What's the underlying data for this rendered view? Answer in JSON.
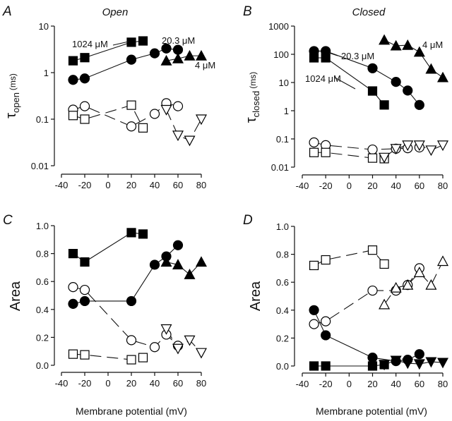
{
  "chart_data": [
    {
      "type": "scatter",
      "panel_letter": "A",
      "title": "Open",
      "ylabel": {
        "symbol": "τ",
        "sub": "open",
        "unit": "(ms)"
      },
      "xlabel": "",
      "yscale": "log",
      "ylim": [
        0.01,
        10
      ],
      "xlim": [
        -40,
        80
      ],
      "yticks": [
        {
          "v": 10,
          "label": "10"
        },
        {
          "v": 1,
          "label": "1"
        },
        {
          "v": 0.1,
          "label": "0.1"
        },
        {
          "v": 0.01,
          "label": "0.01"
        }
      ],
      "xticks": [
        {
          "v": -40,
          "label": "-40"
        },
        {
          "v": -20,
          "label": "-20"
        },
        {
          "v": 0,
          "label": "0"
        },
        {
          "v": 20,
          "label": "20"
        },
        {
          "v": 40,
          "label": "40"
        },
        {
          "v": 60,
          "label": "60"
        },
        {
          "v": 80,
          "label": "80"
        }
      ],
      "annotations": [
        "1024 μM",
        "20.3 μM",
        "4 μM"
      ],
      "series": [
        {
          "name": "1024 μM fast",
          "marker": "square",
          "filled": true,
          "points": [
            [
              -30,
              1.8
            ],
            [
              -20,
              2.1
            ],
            [
              20,
              4.5
            ],
            [
              30,
              4.8
            ]
          ]
        },
        {
          "name": "20.3 μM fast",
          "marker": "circle",
          "filled": true,
          "points": [
            [
              -30,
              0.7
            ],
            [
              -20,
              0.75
            ],
            [
              20,
              1.9
            ],
            [
              40,
              2.6
            ],
            [
              50,
              3.3
            ],
            [
              60,
              3.1
            ]
          ]
        },
        {
          "name": "4 μM fast",
          "marker": "triangle-up",
          "filled": true,
          "points": [
            [
              50,
              1.8
            ],
            [
              60,
              2.0
            ],
            [
              70,
              2.3
            ],
            [
              80,
              2.3
            ]
          ]
        },
        {
          "name": "20.3 μM slow",
          "marker": "circle",
          "filled": false,
          "points": [
            [
              -30,
              0.16
            ],
            [
              -20,
              0.19
            ],
            [
              20,
              0.07
            ],
            [
              40,
              0.13
            ],
            [
              50,
              0.22
            ],
            [
              60,
              0.19
            ]
          ]
        },
        {
          "name": "1024 μM slow",
          "marker": "square",
          "filled": false,
          "points": [
            [
              -30,
              0.12
            ],
            [
              -20,
              0.1
            ],
            [
              20,
              0.2
            ],
            [
              30,
              0.065
            ]
          ]
        },
        {
          "name": "4 μM slow",
          "marker": "triangle-down",
          "filled": false,
          "points": [
            [
              50,
              0.16
            ],
            [
              60,
              0.045
            ],
            [
              70,
              0.035
            ],
            [
              80,
              0.1
            ]
          ]
        }
      ]
    },
    {
      "type": "scatter",
      "panel_letter": "B",
      "title": "Closed",
      "ylabel": {
        "symbol": "τ",
        "sub": "closed",
        "unit": "(ms)"
      },
      "xlabel": "",
      "yscale": "log",
      "ylim": [
        0.01,
        1000
      ],
      "xlim": [
        -40,
        80
      ],
      "yticks": [
        {
          "v": 1000,
          "label": "1000"
        },
        {
          "v": 100,
          "label": "100"
        },
        {
          "v": 10,
          "label": "10"
        },
        {
          "v": 1,
          "label": "1"
        },
        {
          "v": 0.1,
          "label": "0.1"
        },
        {
          "v": 0.01,
          "label": "0.01"
        }
      ],
      "xticks": [
        {
          "v": -40,
          "label": "-40"
        },
        {
          "v": -20,
          "label": "-20"
        },
        {
          "v": 0,
          "label": "0"
        },
        {
          "v": 20,
          "label": "20"
        },
        {
          "v": 40,
          "label": "40"
        },
        {
          "v": 60,
          "label": "60"
        },
        {
          "v": 80,
          "label": "80"
        }
      ],
      "annotations": [
        "4 μM",
        "20.3 μM",
        "1024 μM"
      ],
      "series": [
        {
          "name": "4 μM slow",
          "marker": "triangle-up",
          "filled": true,
          "points": [
            [
              30,
              320
            ],
            [
              40,
              200
            ],
            [
              50,
              210
            ],
            [
              60,
              120
            ],
            [
              70,
              30
            ],
            [
              80,
              15
            ]
          ]
        },
        {
          "name": "20.3 μM slow",
          "marker": "circle",
          "filled": true,
          "points": [
            [
              -30,
              130
            ],
            [
              -20,
              130
            ],
            [
              20,
              32
            ],
            [
              40,
              10.5
            ],
            [
              50,
              5.2
            ],
            [
              60,
              1.6
            ]
          ]
        },
        {
          "name": "1024 μM slow",
          "marker": "square",
          "filled": true,
          "points": [
            [
              -30,
              75
            ],
            [
              -20,
              75
            ],
            [
              20,
              5
            ],
            [
              30,
              1.6
            ]
          ]
        },
        {
          "name": "20.3 μM fast",
          "marker": "circle",
          "filled": false,
          "points": [
            [
              -30,
              0.075
            ],
            [
              -20,
              0.06
            ],
            [
              20,
              0.042
            ],
            [
              40,
              0.045
            ],
            [
              50,
              0.047
            ],
            [
              60,
              0.05
            ]
          ]
        },
        {
          "name": "1024 μM fast",
          "marker": "square",
          "filled": false,
          "points": [
            [
              -30,
              0.033
            ],
            [
              -20,
              0.033
            ],
            [
              20,
              0.021
            ],
            [
              30,
              0.02
            ]
          ]
        },
        {
          "name": "4 μM fast",
          "marker": "triangle-down",
          "filled": false,
          "points": [
            [
              30,
              0.022
            ],
            [
              40,
              0.045
            ],
            [
              50,
              0.06
            ],
            [
              60,
              0.06
            ],
            [
              70,
              0.04
            ],
            [
              80,
              0.06
            ]
          ]
        }
      ]
    },
    {
      "type": "scatter",
      "panel_letter": "C",
      "title": "",
      "ylabel": {
        "symbol": "Area",
        "sub": "",
        "unit": ""
      },
      "xlabel": "Membrane potential (mV)",
      "yscale": "linear",
      "ylim": [
        0,
        1
      ],
      "xlim": [
        -40,
        80
      ],
      "yticks": [
        {
          "v": 1,
          "label": "1.0"
        },
        {
          "v": 0.8,
          "label": "0.8"
        },
        {
          "v": 0.6,
          "label": "0.6"
        },
        {
          "v": 0.4,
          "label": "0.4"
        },
        {
          "v": 0.2,
          "label": "0.2"
        },
        {
          "v": 0,
          "label": "0.0"
        }
      ],
      "xticks": [
        {
          "v": -40,
          "label": "-40"
        },
        {
          "v": -20,
          "label": "-20"
        },
        {
          "v": 0,
          "label": "0"
        },
        {
          "v": 20,
          "label": "20"
        },
        {
          "v": 40,
          "label": "40"
        },
        {
          "v": 60,
          "label": "60"
        },
        {
          "v": 80,
          "label": "80"
        }
      ],
      "annotations": [],
      "series": [
        {
          "name": "1024 μM",
          "marker": "square",
          "filled": true,
          "points": [
            [
              -30,
              0.8
            ],
            [
              -20,
              0.74
            ],
            [
              20,
              0.95
            ],
            [
              30,
              0.94
            ]
          ]
        },
        {
          "name": "20.3 μM",
          "marker": "circle",
          "filled": true,
          "points": [
            [
              -30,
              0.44
            ],
            [
              -20,
              0.46
            ],
            [
              20,
              0.46
            ],
            [
              40,
              0.72
            ],
            [
              50,
              0.78
            ],
            [
              60,
              0.86
            ]
          ]
        },
        {
          "name": "4 μM",
          "marker": "triangle-up",
          "filled": true,
          "points": [
            [
              50,
              0.74
            ],
            [
              60,
              0.72
            ],
            [
              70,
              0.65
            ],
            [
              80,
              0.74
            ]
          ]
        },
        {
          "name": "20.3 μM open",
          "marker": "circle",
          "filled": false,
          "points": [
            [
              -30,
              0.56
            ],
            [
              -20,
              0.54
            ],
            [
              20,
              0.18
            ],
            [
              40,
              0.13
            ],
            [
              50,
              0.22
            ],
            [
              60,
              0.14
            ]
          ]
        },
        {
          "name": "1024 μM open",
          "marker": "square",
          "filled": false,
          "points": [
            [
              -30,
              0.08
            ],
            [
              -20,
              0.075
            ],
            [
              20,
              0.04
            ],
            [
              30,
              0.055
            ]
          ]
        },
        {
          "name": "4 μM open",
          "marker": "triangle-down",
          "filled": false,
          "points": [
            [
              50,
              0.26
            ],
            [
              60,
              0.12
            ],
            [
              70,
              0.18
            ],
            [
              80,
              0.09
            ]
          ]
        }
      ]
    },
    {
      "type": "scatter",
      "panel_letter": "D",
      "title": "",
      "ylabel": {
        "symbol": "Area",
        "sub": "",
        "unit": ""
      },
      "xlabel": "Membrane potential (mV)",
      "yscale": "linear",
      "ylim": [
        0,
        1
      ],
      "xlim": [
        -40,
        80
      ],
      "yticks": [
        {
          "v": 1,
          "label": "1.0"
        },
        {
          "v": 0.8,
          "label": "0.8"
        },
        {
          "v": 0.6,
          "label": "0.6"
        },
        {
          "v": 0.4,
          "label": "0.4"
        },
        {
          "v": 0.2,
          "label": "0.2"
        },
        {
          "v": 0,
          "label": "0.0"
        }
      ],
      "xticks": [
        {
          "v": -40,
          "label": "-40"
        },
        {
          "v": -20,
          "label": "-20"
        },
        {
          "v": 0,
          "label": "0"
        },
        {
          "v": 20,
          "label": "20"
        },
        {
          "v": 40,
          "label": "40"
        },
        {
          "v": 60,
          "label": "60"
        },
        {
          "v": 80,
          "label": "80"
        }
      ],
      "annotations": [],
      "series": [
        {
          "name": "1024 μM open",
          "marker": "square",
          "filled": false,
          "points": [
            [
              -30,
              0.72
            ],
            [
              -20,
              0.76
            ],
            [
              20,
              0.83
            ],
            [
              30,
              0.73
            ]
          ]
        },
        {
          "name": "20.3 μM open",
          "marker": "circle",
          "filled": false,
          "points": [
            [
              -30,
              0.3
            ],
            [
              -20,
              0.32
            ],
            [
              20,
              0.54
            ],
            [
              40,
              0.54
            ],
            [
              50,
              0.58
            ],
            [
              60,
              0.7
            ]
          ]
        },
        {
          "name": "4 μM open",
          "marker": "triangle-up",
          "filled": false,
          "points": [
            [
              30,
              0.44
            ],
            [
              40,
              0.56
            ],
            [
              50,
              0.58
            ],
            [
              60,
              0.67
            ],
            [
              70,
              0.58
            ],
            [
              80,
              0.75
            ]
          ]
        },
        {
          "name": "20.3 μM",
          "marker": "circle",
          "filled": true,
          "points": [
            [
              -30,
              0.4
            ],
            [
              -20,
              0.22
            ],
            [
              20,
              0.06
            ],
            [
              40,
              0.035
            ],
            [
              50,
              0.045
            ],
            [
              60,
              0.085
            ]
          ]
        },
        {
          "name": "1024 μM",
          "marker": "square",
          "filled": true,
          "points": [
            [
              -30,
              0
            ],
            [
              -20,
              0
            ],
            [
              20,
              0
            ],
            [
              30,
              0.01
            ]
          ]
        },
        {
          "name": "4 μM",
          "marker": "triangle-down",
          "filled": true,
          "points": [
            [
              30,
              0.01
            ],
            [
              40,
              0.04
            ],
            [
              50,
              0.02
            ],
            [
              60,
              0.015
            ],
            [
              70,
              0.03
            ],
            [
              80,
              0.025
            ]
          ]
        }
      ]
    }
  ]
}
